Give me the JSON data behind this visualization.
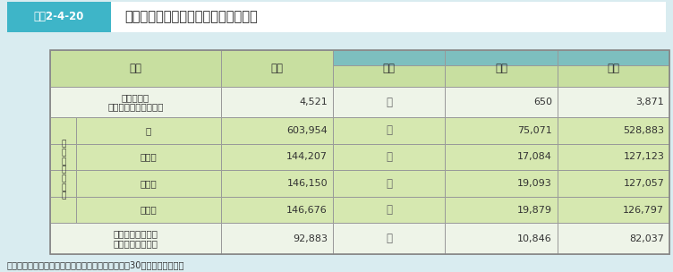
{
  "title_label": "図表2-4-20",
  "title_text": "幼保連携型認定こども園数及び園児数",
  "source_text": "（出典）文部科学省「学校基本調査報告書」（平成30年５月１日現在）",
  "header_green": "#c8dfa0",
  "header_teal": "#7dbfbf",
  "side_row_bg": "#d6e8b0",
  "row_bg_a": "#eef4e8",
  "row_bg_b": "#f5f9f2",
  "title_box_bg": "#3eb5c8",
  "title_box_text_color": "#ffffff",
  "bg_color": "#d9ecf0",
  "border_color": "#999999",
  "row_data": [
    {
      "label": "幼保連携型\n認定こども園数（園）",
      "in_side": false,
      "vals": [
        "4,521",
        "－",
        "650",
        "3,871"
      ]
    },
    {
      "label": "計",
      "in_side": true,
      "vals": [
        "603,954",
        "－",
        "75,071",
        "528,883"
      ]
    },
    {
      "label": "３歳児",
      "in_side": true,
      "vals": [
        "144,207",
        "－",
        "17,084",
        "127,123"
      ]
    },
    {
      "label": "４歳児",
      "in_side": true,
      "vals": [
        "146,150",
        "－",
        "19,093",
        "127,057"
      ]
    },
    {
      "label": "５歳児",
      "in_side": true,
      "vals": [
        "146,676",
        "－",
        "19,879",
        "126,797"
      ]
    },
    {
      "label": "教員・保育教員数\n（本務者）（人）",
      "in_side": false,
      "vals": [
        "92,883",
        "－",
        "10,846",
        "82,037"
      ]
    }
  ],
  "side_label": "在\n園\n児\n数\n（\n人\n）",
  "col_headers": [
    "区分",
    "合計",
    "国立",
    "公立",
    "私立"
  ]
}
